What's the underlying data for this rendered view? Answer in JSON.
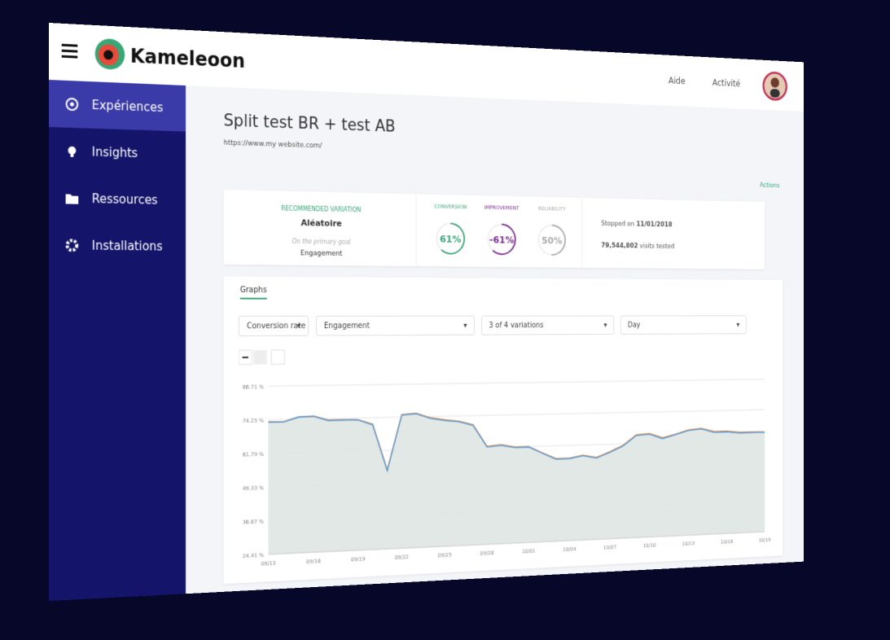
{
  "header": {
    "logo": "Kameleoon",
    "links": [
      "Aide",
      "Activité"
    ]
  },
  "nav": [
    "Expériences",
    "Insights",
    "Ressources",
    "Installations"
  ],
  "page": {
    "title": "Split test BR + test AB",
    "url": "https://www.my website.com/",
    "actions": "Actions"
  },
  "summary": {
    "recommended_label": "RECOMMENDED VARIATION",
    "recommended": "Aléatoire",
    "goal_label": "On the primary goal",
    "goal": "Engagement",
    "stats": [
      {
        "label": "CONVERSION",
        "value": 61,
        "value_label": "61%",
        "color": "#3aa677"
      },
      {
        "label": "IMPROVEMENT",
        "value": -61,
        "value_label": "-61%",
        "color": "#7b2d8e"
      },
      {
        "label": "RELIABILITY",
        "value": 50,
        "value_label": "50%",
        "color": "#aaaaaa"
      }
    ],
    "stopped_label": "Stopped on",
    "stopped_date": "11/01/2018",
    "visits": "79,544,802",
    "visits_label": "visits tested"
  },
  "graphs": {
    "tab": "Graphs",
    "filters": [
      "Conversion rate",
      "Engagement",
      "3 of 4 variations",
      "Day"
    ]
  },
  "chart_data": {
    "type": "line",
    "categories": [
      "09/13",
      null,
      null,
      "09/16",
      null,
      null,
      "09/19",
      null,
      null,
      "09/22",
      null,
      null,
      "09/25",
      null,
      null,
      "09/28",
      null,
      null,
      "10/01",
      null,
      null,
      "10/04",
      null,
      null,
      "10/07",
      null,
      null,
      "10/10",
      null,
      null,
      "10/13",
      null,
      null,
      "10/16",
      null,
      null,
      "10/19"
    ],
    "series": [
      {
        "color": "#e8955a",
        "values": [
          73.5,
          73.4,
          75.1,
          75.3,
          73.7,
          73.7,
          73.6,
          71.8,
          54.5,
          75.2,
          75.6,
          73.8,
          72.9,
          72.2,
          70.8,
          62.3,
          62.8,
          61.8,
          61.8,
          59.2,
          56.8,
          56.8,
          57.8,
          56.8,
          58.9,
          61.3,
          65.3,
          65.7,
          63.9,
          65.2,
          66.8,
          67.3,
          65.9,
          65.9,
          65.3,
          65.3,
          65.2
        ]
      },
      {
        "color": "#5b9bd5",
        "values": [
          73.3,
          73.3,
          75,
          75.2,
          73.5,
          73.6,
          73.5,
          71.5,
          54,
          75,
          75.4,
          73.5,
          72.6,
          72,
          70.5,
          62,
          62.5,
          61.5,
          61.6,
          59,
          56.5,
          56.6,
          57.6,
          56.5,
          58.6,
          61,
          65,
          65.4,
          63.5,
          65,
          66.5,
          67,
          65.5,
          65.6,
          65,
          65.1,
          65
        ]
      }
    ],
    "ylim": [
      24.41,
      86.71
    ],
    "yticks": [
      {
        "value": 24.41,
        "label": "24.41 %"
      },
      {
        "value": 36.87,
        "label": "36.87 %"
      },
      {
        "value": 49.33,
        "label": "49.33 %"
      },
      {
        "value": 61.79,
        "label": "61.79 %"
      },
      {
        "value": 74.25,
        "label": "74.25 %"
      },
      {
        "value": 86.71,
        "label": "86.71 %"
      }
    ],
    "grid": true
  }
}
